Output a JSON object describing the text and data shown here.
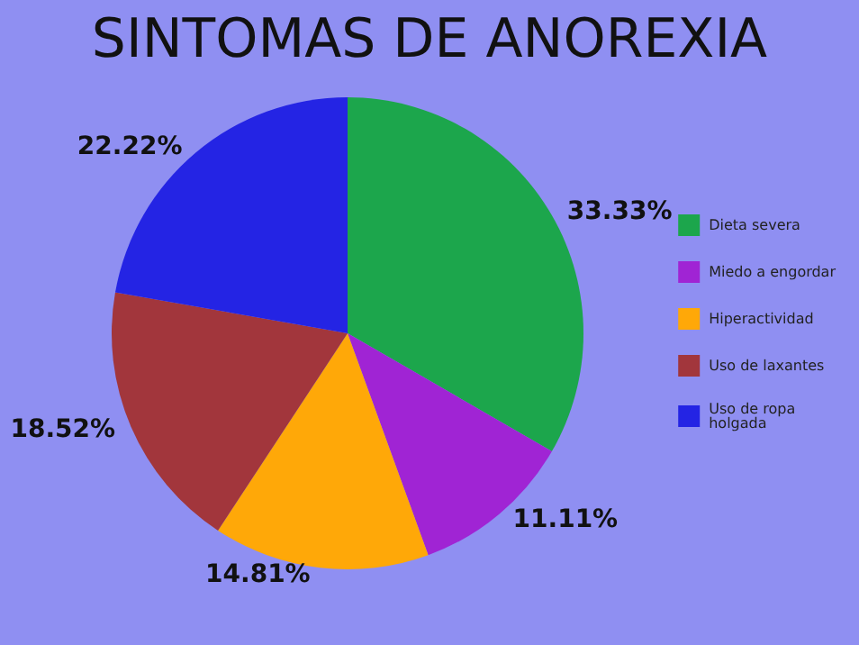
{
  "chart_data": {
    "type": "pie",
    "title": "SINTOMAS DE ANOREXIA",
    "categories": [
      "Dieta severa",
      "Miedo a engordar",
      "Hiperactividad",
      "Uso de laxantes",
      "Uso de ropa holgada"
    ],
    "values": [
      33.33,
      11.11,
      14.81,
      18.52,
      22.22
    ],
    "colors": [
      "#1ca64c",
      "#a024d4",
      "#ffa808",
      "#a2363c",
      "#2424e4"
    ],
    "value_labels": [
      "33.33%",
      "11.11%",
      "14.81%",
      "18.52%",
      "22.22%"
    ],
    "legend": "right"
  }
}
